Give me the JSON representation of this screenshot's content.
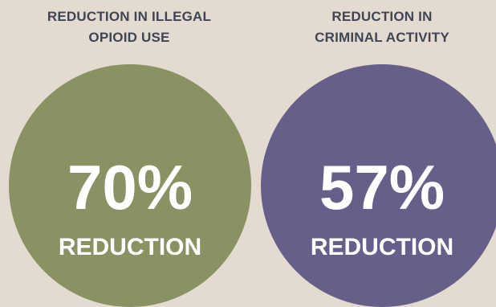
{
  "colors": {
    "background": "#e4dbd0",
    "heading_text": "#3f4553",
    "left_circle": "#889263",
    "right_circle": "#665f89",
    "stat_text": "#ffffff"
  },
  "left": {
    "heading_line1": "REDUCTION IN ILLEGAL",
    "heading_line2": "OPIOID USE",
    "value": "70%",
    "caption": "REDUCTION"
  },
  "right": {
    "heading_line1": "REDUCTION IN",
    "heading_line2": "CRIMINAL ACTIVITY",
    "value": "57%",
    "caption": "REDUCTION"
  }
}
